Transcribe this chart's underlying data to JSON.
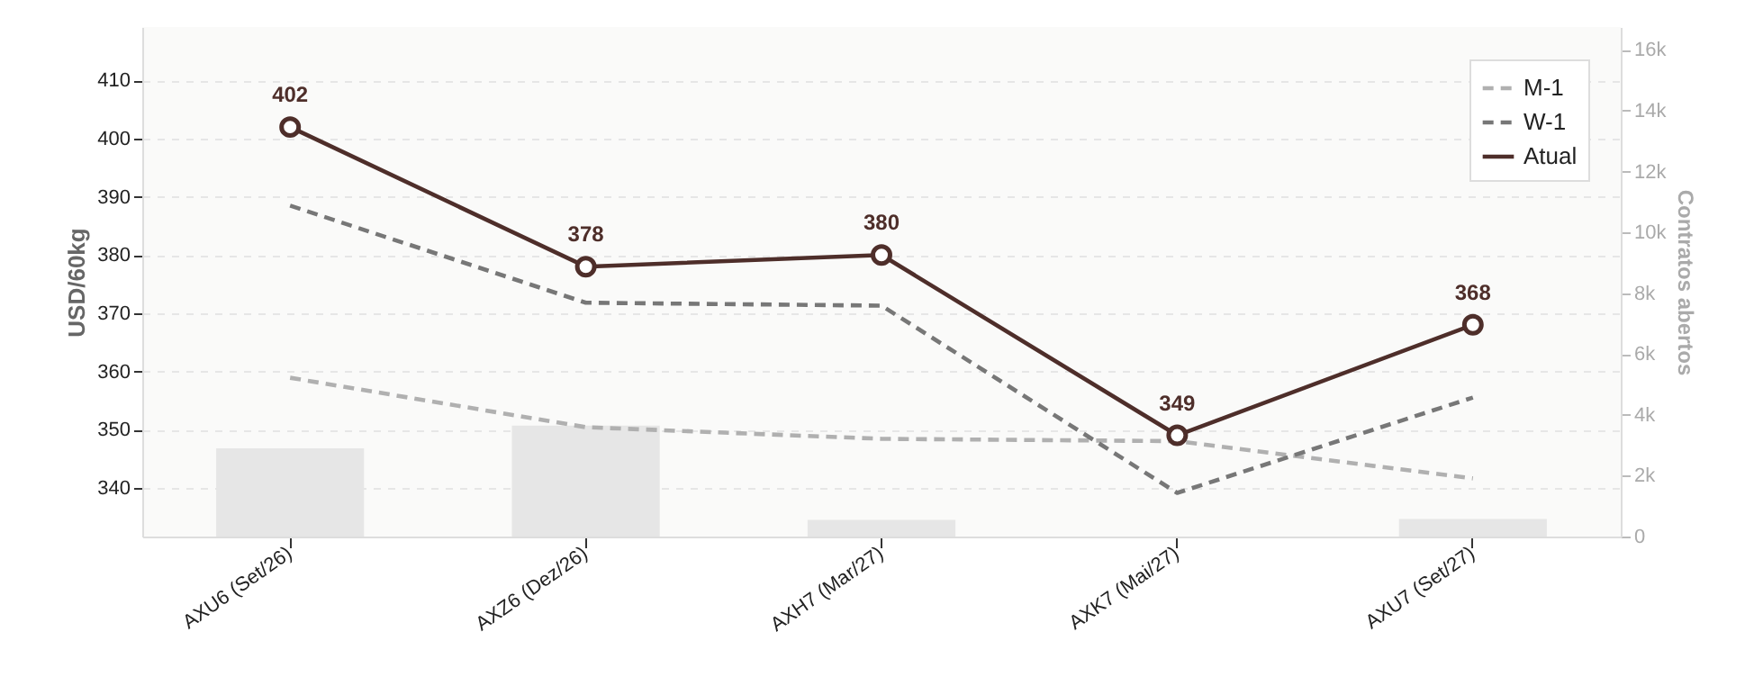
{
  "chart_data": {
    "type": "line",
    "ylabel": "USD/60kg",
    "y2label": "Contratos abertos",
    "categories": [
      "AXU6 (Set/26)",
      "AXZ6 (Dez/26)",
      "AXH7 (Mar/27)",
      "AXK7 (Mai/27)",
      "AXU7 (Set/27)"
    ],
    "series": [
      {
        "type": "bar",
        "axis": "y2",
        "color": "#e6e6e6",
        "values": [
          2900,
          3650,
          550,
          0,
          580
        ]
      },
      {
        "name": "M-1",
        "color": "#b0b0b0",
        "line_style": "dashed",
        "marker": "none",
        "values": [
          358.9,
          350.4,
          348.4,
          348.0,
          341.6
        ]
      },
      {
        "name": "W-1",
        "color": "#777777",
        "line_style": "dashed",
        "marker": "none",
        "values": [
          388.5,
          371.8,
          371.3,
          339.1,
          355.5
        ]
      },
      {
        "name": "Atual",
        "color": "#4e2e2a",
        "line_style": "solid",
        "marker": "circle",
        "values": [
          402,
          378,
          380,
          349,
          368
        ],
        "value_labels": [
          "402",
          "378",
          "380",
          "349",
          "368"
        ]
      }
    ],
    "ylim": [
      331.6,
      419.2
    ],
    "yticks": [
      340,
      350,
      360,
      370,
      380,
      390,
      400,
      410
    ],
    "y2lim": [
      0,
      16750
    ],
    "y2ticks": [
      0,
      {
        "value": 2000,
        "label": "2k"
      },
      {
        "value": 4000,
        "label": "4k"
      },
      {
        "value": 6000,
        "label": "6k"
      },
      {
        "value": 8000,
        "label": "8k"
      },
      {
        "value": 10000,
        "label": "10k"
      },
      {
        "value": 12000,
        "label": "12k"
      },
      {
        "value": 14000,
        "label": "14k"
      },
      {
        "value": 16000,
        "label": "16k"
      }
    ],
    "grid": "y",
    "legend": "top right"
  }
}
